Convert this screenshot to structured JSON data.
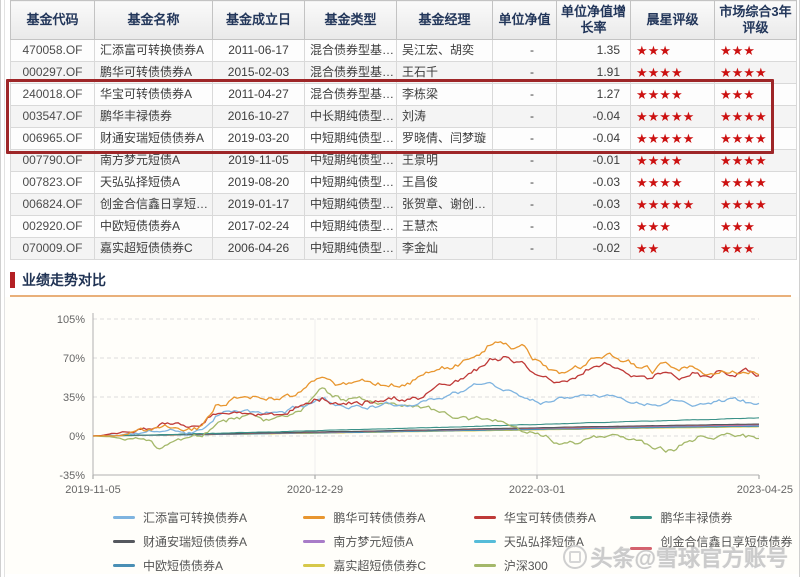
{
  "table": {
    "columns": [
      "基金代码",
      "基金名称",
      "基金成立日",
      "基金类型",
      "基金经理",
      "单位净值",
      "单位净值增长率",
      "晨星评级",
      "市场综合3年评级"
    ],
    "rows": [
      {
        "code": "470058.OF",
        "name": "汇添富可转换债券A",
        "date": "2011-06-17",
        "type": "混合债券型基…",
        "manager": "吴江宏、胡奕",
        "nav": "-",
        "growth": "1.35",
        "morningstar": 3,
        "market": 3
      },
      {
        "code": "000297.OF",
        "name": "鹏华可转债债券A",
        "date": "2015-02-03",
        "type": "混合债券型基…",
        "manager": "王石千",
        "nav": "-",
        "growth": "1.91",
        "morningstar": 4,
        "market": 4
      },
      {
        "code": "240018.OF",
        "name": "华宝可转债债券A",
        "date": "2011-04-27",
        "type": "混合债券型基…",
        "manager": "李栋梁",
        "nav": "-",
        "growth": "1.27",
        "morningstar": 4,
        "market": 3
      },
      {
        "code": "003547.OF",
        "name": "鹏华丰禄债券",
        "date": "2016-10-27",
        "type": "中长期纯债型…",
        "manager": "刘涛",
        "nav": "-",
        "growth": "-0.04",
        "morningstar": 5,
        "market": 4
      },
      {
        "code": "006965.OF",
        "name": "财通安瑞短债债券A",
        "date": "2019-03-20",
        "type": "中短期纯债型…",
        "manager": "罗晓倩、闫梦璇",
        "nav": "-",
        "growth": "-0.04",
        "morningstar": 5,
        "market": 4
      },
      {
        "code": "007790.OF",
        "name": "南方梦元短债A",
        "date": "2019-11-05",
        "type": "中短期纯债型…",
        "manager": "王景明",
        "nav": "-",
        "growth": "-0.01",
        "morningstar": 4,
        "market": 4
      },
      {
        "code": "007823.OF",
        "name": "天弘弘择短债A",
        "date": "2019-08-20",
        "type": "中短期纯债型…",
        "manager": "王昌俊",
        "nav": "-",
        "growth": "-0.03",
        "morningstar": 4,
        "market": 4
      },
      {
        "code": "006824.OF",
        "name": "创金合信鑫日享短…",
        "date": "2019-01-17",
        "type": "中短期纯债型…",
        "manager": "张贺章、谢创…",
        "nav": "-",
        "growth": "-0.03",
        "morningstar": 5,
        "market": 4
      },
      {
        "code": "002920.OF",
        "name": "中欧短债债券A",
        "date": "2017-02-24",
        "type": "中短期纯债型…",
        "manager": "王慧杰",
        "nav": "-",
        "growth": "-0.03",
        "morningstar": 3,
        "market": 3
      },
      {
        "code": "070009.OF",
        "name": "嘉实超短债债券C",
        "date": "2006-04-26",
        "type": "中短期纯债型…",
        "manager": "李金灿",
        "nav": "-",
        "growth": "-0.02",
        "morningstar": 2,
        "market": 3
      }
    ],
    "highlight_rows": [
      2,
      3,
      4
    ],
    "star_color": "#cc1111",
    "highlight_border_color": "#9e2628"
  },
  "section": {
    "title": "业绩走势对比"
  },
  "chart_data": {
    "type": "line",
    "title": "业绩走势对比",
    "ylabel": "",
    "xlabel": "",
    "ylim": [
      -35,
      105
    ],
    "yticks": [
      105,
      70,
      35,
      0,
      -35
    ],
    "ytick_suffix": "%",
    "xticks": [
      "2019-11-05",
      "2020-12-29",
      "2022-03-01",
      "2023-04-25"
    ],
    "grid": "dashed-horizontal",
    "legend_position": "bottom",
    "draw_order": [
      5,
      7,
      4,
      2,
      10,
      1,
      9,
      8,
      0,
      6,
      3
    ],
    "series": [
      {
        "name": "汇添富可转换债券A",
        "color": "#7fb4e0",
        "volatility": 1.4,
        "anchors": [
          [
            0,
            0
          ],
          [
            0.04,
            1
          ],
          [
            0.08,
            3
          ],
          [
            0.11,
            5
          ],
          [
            0.14,
            4
          ],
          [
            0.165,
            6
          ],
          [
            0.185,
            20
          ],
          [
            0.21,
            22
          ],
          [
            0.24,
            21
          ],
          [
            0.27,
            20
          ],
          [
            0.3,
            24
          ],
          [
            0.325,
            30
          ],
          [
            0.345,
            34
          ],
          [
            0.37,
            28
          ],
          [
            0.4,
            26
          ],
          [
            0.43,
            27
          ],
          [
            0.46,
            28
          ],
          [
            0.49,
            31
          ],
          [
            0.52,
            35
          ],
          [
            0.55,
            40
          ],
          [
            0.575,
            45
          ],
          [
            0.595,
            47
          ],
          [
            0.62,
            42
          ],
          [
            0.645,
            36
          ],
          [
            0.67,
            31
          ],
          [
            0.695,
            33
          ],
          [
            0.72,
            37
          ],
          [
            0.74,
            40
          ],
          [
            0.76,
            38
          ],
          [
            0.78,
            36
          ],
          [
            0.8,
            33
          ],
          [
            0.82,
            30
          ],
          [
            0.84,
            29
          ],
          [
            0.86,
            32
          ],
          [
            0.88,
            34
          ],
          [
            0.9,
            31
          ],
          [
            0.92,
            30
          ],
          [
            0.94,
            33
          ],
          [
            0.96,
            34
          ],
          [
            0.98,
            31
          ],
          [
            1,
            29
          ]
        ]
      },
      {
        "name": "财通安瑞短债债券A",
        "color": "#55585e",
        "volatility": 0.07,
        "anchors": [
          [
            0,
            0
          ],
          [
            0.15,
            1.5
          ],
          [
            0.3,
            3.2
          ],
          [
            0.5,
            5.5
          ],
          [
            0.7,
            7.8
          ],
          [
            0.85,
            9.4
          ],
          [
            1,
            10.8
          ]
        ]
      },
      {
        "name": "中欧短债债券A",
        "color": "#4a8fb5",
        "volatility": 0.07,
        "anchors": [
          [
            0,
            0
          ],
          [
            0.15,
            1.1
          ],
          [
            0.3,
            2.4
          ],
          [
            0.5,
            4.3
          ],
          [
            0.7,
            6.2
          ],
          [
            0.85,
            7.6
          ],
          [
            1,
            8.8
          ]
        ]
      },
      {
        "name": "鹏华可转债债券A",
        "color": "#e8962f",
        "volatility": 1.9,
        "anchors": [
          [
            0,
            0
          ],
          [
            0.04,
            1
          ],
          [
            0.08,
            5
          ],
          [
            0.11,
            8
          ],
          [
            0.14,
            6
          ],
          [
            0.165,
            9
          ],
          [
            0.185,
            30
          ],
          [
            0.21,
            34
          ],
          [
            0.235,
            36
          ],
          [
            0.26,
            31
          ],
          [
            0.285,
            34
          ],
          [
            0.31,
            42
          ],
          [
            0.33,
            50
          ],
          [
            0.345,
            55
          ],
          [
            0.37,
            47
          ],
          [
            0.4,
            44
          ],
          [
            0.43,
            46
          ],
          [
            0.46,
            48
          ],
          [
            0.49,
            52
          ],
          [
            0.52,
            58
          ],
          [
            0.55,
            65
          ],
          [
            0.58,
            74
          ],
          [
            0.6,
            82
          ],
          [
            0.615,
            86
          ],
          [
            0.63,
            80
          ],
          [
            0.645,
            84
          ],
          [
            0.66,
            72
          ],
          [
            0.68,
            62
          ],
          [
            0.7,
            54
          ],
          [
            0.72,
            58
          ],
          [
            0.74,
            64
          ],
          [
            0.76,
            71
          ],
          [
            0.775,
            76
          ],
          [
            0.8,
            68
          ],
          [
            0.82,
            61
          ],
          [
            0.84,
            57
          ],
          [
            0.86,
            64
          ],
          [
            0.88,
            58
          ],
          [
            0.9,
            63
          ],
          [
            0.92,
            59
          ],
          [
            0.94,
            62
          ],
          [
            0.96,
            63
          ],
          [
            0.98,
            58
          ],
          [
            1,
            56
          ]
        ]
      },
      {
        "name": "南方梦元短债A",
        "color": "#a87cc8",
        "volatility": 0.07,
        "anchors": [
          [
            0,
            0
          ],
          [
            0.15,
            1.3
          ],
          [
            0.3,
            2.8
          ],
          [
            0.5,
            4.9
          ],
          [
            0.7,
            7.0
          ],
          [
            0.85,
            8.5
          ],
          [
            1,
            9.8
          ]
        ]
      },
      {
        "name": "嘉实超短债债券C",
        "color": "#d6c84a",
        "volatility": 0.07,
        "anchors": [
          [
            0,
            0
          ],
          [
            0.15,
            1.0
          ],
          [
            0.3,
            2.2
          ],
          [
            0.5,
            4.0
          ],
          [
            0.7,
            5.8
          ],
          [
            0.85,
            7.1
          ],
          [
            1,
            8.2
          ]
        ]
      },
      {
        "name": "华宝可转债债券A",
        "color": "#bf3a38",
        "volatility": 1.7,
        "anchors": [
          [
            0,
            0
          ],
          [
            0.03,
            2
          ],
          [
            0.06,
            5
          ],
          [
            0.09,
            8
          ],
          [
            0.12,
            10
          ],
          [
            0.14,
            8
          ],
          [
            0.165,
            10
          ],
          [
            0.185,
            22
          ],
          [
            0.21,
            24
          ],
          [
            0.24,
            22
          ],
          [
            0.27,
            21
          ],
          [
            0.3,
            25
          ],
          [
            0.325,
            30
          ],
          [
            0.345,
            33
          ],
          [
            0.37,
            29
          ],
          [
            0.4,
            30
          ],
          [
            0.43,
            32
          ],
          [
            0.46,
            33
          ],
          [
            0.49,
            36
          ],
          [
            0.52,
            43
          ],
          [
            0.55,
            50
          ],
          [
            0.58,
            60
          ],
          [
            0.6,
            67
          ],
          [
            0.62,
            71
          ],
          [
            0.645,
            65
          ],
          [
            0.67,
            52
          ],
          [
            0.695,
            45
          ],
          [
            0.72,
            50
          ],
          [
            0.745,
            58
          ],
          [
            0.77,
            66
          ],
          [
            0.79,
            60
          ],
          [
            0.815,
            55
          ],
          [
            0.84,
            52
          ],
          [
            0.86,
            58
          ],
          [
            0.88,
            53
          ],
          [
            0.9,
            57
          ],
          [
            0.92,
            54
          ],
          [
            0.94,
            57
          ],
          [
            0.96,
            55
          ],
          [
            0.98,
            57
          ],
          [
            1,
            53
          ]
        ]
      },
      {
        "name": "天弘弘择短债A",
        "color": "#56bcd9",
        "volatility": 0.07,
        "anchors": [
          [
            0,
            0
          ],
          [
            0.15,
            1.2
          ],
          [
            0.3,
            2.6
          ],
          [
            0.5,
            4.6
          ],
          [
            0.7,
            6.6
          ],
          [
            0.85,
            8.1
          ],
          [
            1,
            9.3
          ]
        ]
      },
      {
        "name": "沪深300",
        "color": "#a4b86a",
        "volatility": 1.6,
        "anchors": [
          [
            0,
            0
          ],
          [
            0.03,
            -1
          ],
          [
            0.05,
            -3
          ],
          [
            0.07,
            -2
          ],
          [
            0.085,
            -7
          ],
          [
            0.1,
            -12
          ],
          [
            0.115,
            -9
          ],
          [
            0.13,
            -5
          ],
          [
            0.15,
            -2
          ],
          [
            0.165,
            0
          ],
          [
            0.185,
            13
          ],
          [
            0.21,
            17
          ],
          [
            0.235,
            19
          ],
          [
            0.26,
            15
          ],
          [
            0.285,
            18
          ],
          [
            0.31,
            24
          ],
          [
            0.33,
            33
          ],
          [
            0.345,
            42
          ],
          [
            0.36,
            35
          ],
          [
            0.38,
            30
          ],
          [
            0.4,
            32
          ],
          [
            0.42,
            30
          ],
          [
            0.44,
            31
          ],
          [
            0.46,
            29
          ],
          [
            0.48,
            27
          ],
          [
            0.5,
            25
          ],
          [
            0.52,
            21
          ],
          [
            0.54,
            18
          ],
          [
            0.56,
            16
          ],
          [
            0.58,
            14
          ],
          [
            0.6,
            11
          ],
          [
            0.62,
            8
          ],
          [
            0.64,
            4
          ],
          [
            0.66,
            0
          ],
          [
            0.68,
            -3
          ],
          [
            0.7,
            -8
          ],
          [
            0.72,
            -6
          ],
          [
            0.74,
            -2
          ],
          [
            0.76,
            1
          ],
          [
            0.78,
            2
          ],
          [
            0.8,
            -2
          ],
          [
            0.82,
            -6
          ],
          [
            0.84,
            -10
          ],
          [
            0.86,
            -13
          ],
          [
            0.875,
            -11
          ],
          [
            0.89,
            -7
          ],
          [
            0.91,
            -3
          ],
          [
            0.93,
            0
          ],
          [
            0.95,
            2
          ],
          [
            0.97,
            0
          ],
          [
            1,
            -2
          ]
        ]
      },
      {
        "name": "鹏华丰禄债券",
        "color": "#3a9188",
        "volatility": 0.12,
        "anchors": [
          [
            0,
            0
          ],
          [
            0.1,
            1.2
          ],
          [
            0.2,
            2.6
          ],
          [
            0.3,
            4.2
          ],
          [
            0.4,
            5.8
          ],
          [
            0.5,
            7.4
          ],
          [
            0.6,
            9.2
          ],
          [
            0.7,
            11
          ],
          [
            0.8,
            12.8
          ],
          [
            0.9,
            14.5
          ],
          [
            1,
            16
          ]
        ]
      },
      {
        "name": "创金合信鑫日享短债债券A",
        "color": "#d4626e",
        "volatility": 0.07,
        "anchors": [
          [
            0,
            0
          ],
          [
            0.15,
            1.4
          ],
          [
            0.3,
            3.0
          ],
          [
            0.5,
            5.2
          ],
          [
            0.7,
            7.4
          ],
          [
            0.85,
            9.0
          ],
          [
            1,
            10.3
          ]
        ]
      }
    ]
  },
  "watermark": {
    "logo": "toutiao-logo",
    "text": "头条@雪球官方账号"
  }
}
